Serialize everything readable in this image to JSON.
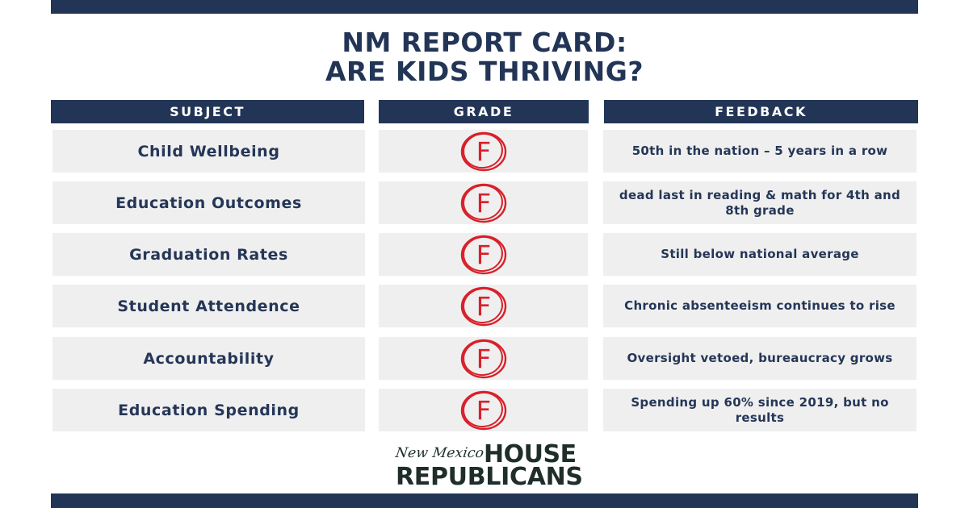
{
  "title": {
    "line1": "NM REPORT CARD:",
    "line2": "ARE KIDS THRIVING?"
  },
  "headers": {
    "subject": "SUBJECT",
    "grade": "GRADE",
    "feedback": "FEEDBACK"
  },
  "rows": [
    {
      "subject": "Child Wellbeing",
      "grade": "F",
      "feedback": "50th in the nation – 5 years in a row"
    },
    {
      "subject": "Education Outcomes",
      "grade": "F",
      "feedback": "dead last in reading & math for 4th and 8th grade"
    },
    {
      "subject": "Graduation Rates",
      "grade": "F",
      "feedback": "Still below national average"
    },
    {
      "subject": "Student Attendence",
      "grade": "F",
      "feedback": "Chronic absenteeism continues to rise"
    },
    {
      "subject": "Accountability",
      "grade": "F",
      "feedback": "Oversight vetoed, bureaucracy grows"
    },
    {
      "subject": "Education Spending",
      "grade": "F",
      "feedback": "Spending up 60% since 2019, but no results"
    }
  ],
  "logo": {
    "script": "New Mexico",
    "line1": "HOUSE",
    "line2": "REPUBLICANS"
  },
  "colors": {
    "navy": "#223556",
    "cell": "#efefef",
    "grade_red": "#d8202a"
  }
}
